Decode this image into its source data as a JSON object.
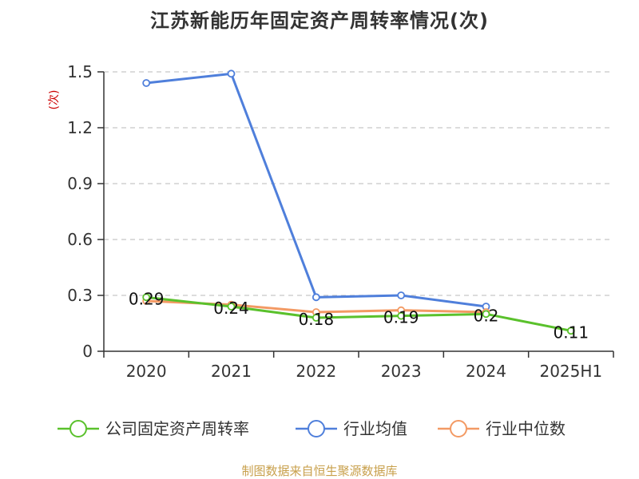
{
  "title": "江苏新能历年固定资产周转率情况(次)",
  "source": "制图数据来自恒生聚源数据库",
  "chart_data": {
    "type": "line",
    "title": "江苏新能历年固定资产周转率情况(次)",
    "ylabel": "(次)",
    "xlabel": "",
    "categories": [
      "2020",
      "2021",
      "2022",
      "2023",
      "2024",
      "2025H1"
    ],
    "ylim": [
      0,
      1.5
    ],
    "yticks": [
      0,
      0.3,
      0.6,
      0.9,
      1.2,
      1.5
    ],
    "ytick_labels": [
      "0",
      "0.3",
      "0.6",
      "0.9",
      "1.2",
      "1.5"
    ],
    "grid": true,
    "legend_position": "bottom",
    "series": [
      {
        "name": "公司固定资产周转率",
        "color": "#5ac12c",
        "values": [
          0.29,
          0.24,
          0.18,
          0.19,
          0.2,
          0.11
        ],
        "labels": [
          "0.29",
          "0.24",
          "0.18",
          "0.19",
          "0.2",
          "0.11"
        ]
      },
      {
        "name": "行业均值",
        "color": "#4f7fdb",
        "values": [
          1.44,
          1.49,
          0.29,
          0.3,
          0.24,
          null
        ],
        "labels": []
      },
      {
        "name": "行业中位数",
        "color": "#f39a64",
        "values": [
          0.27,
          0.25,
          0.21,
          0.22,
          0.21,
          null
        ],
        "labels": []
      }
    ]
  }
}
